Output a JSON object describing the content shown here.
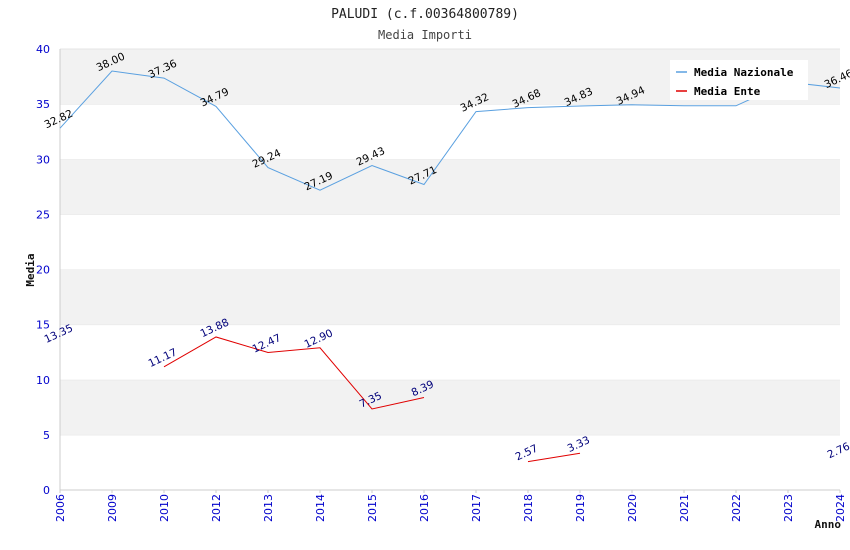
{
  "chart_data": {
    "type": "line",
    "title": "PALUDI (c.f.00364800789)",
    "subtitle": "Media Importi",
    "xlabel": "Anno",
    "ylabel": "Media",
    "categories": [
      "2006",
      "2009",
      "2010",
      "2012",
      "2013",
      "2014",
      "2015",
      "2016",
      "2017",
      "2018",
      "2019",
      "2020",
      "2021",
      "2022",
      "2023",
      "2024"
    ],
    "ylim": [
      0,
      40
    ],
    "yticks": [
      0,
      5,
      10,
      15,
      20,
      25,
      30,
      35,
      40
    ],
    "grid": "horizontal-bands",
    "legend_position": "top-right",
    "series": [
      {
        "name": "Media Nazionale",
        "color": "#5aa0e0",
        "label_color": "#000000",
        "values": [
          32.82,
          38.0,
          37.36,
          34.79,
          29.24,
          27.19,
          29.43,
          27.71,
          34.32,
          34.68,
          34.83,
          34.94,
          34.85,
          34.85,
          37.0,
          36.46
        ],
        "labels": [
          "32.82",
          "38.00",
          "37.36",
          "34.79",
          "29.24",
          "27.19",
          "29.43",
          "27.71",
          "34.32",
          "34.68",
          "34.83",
          "34.94",
          null,
          null,
          null,
          "36.46"
        ]
      },
      {
        "name": "Media Ente",
        "color": "#e00000",
        "label_color": "#00007a",
        "values": [
          13.35,
          null,
          11.17,
          13.88,
          12.47,
          12.9,
          7.35,
          8.39,
          null,
          2.57,
          3.33,
          null,
          null,
          null,
          null,
          2.76
        ],
        "labels": [
          "13.35",
          null,
          "11.17",
          "13.88",
          "12.47",
          "12.90",
          "7.35",
          "8.39",
          null,
          "2.57",
          "3.33",
          null,
          null,
          null,
          null,
          "2.76"
        ]
      }
    ]
  }
}
